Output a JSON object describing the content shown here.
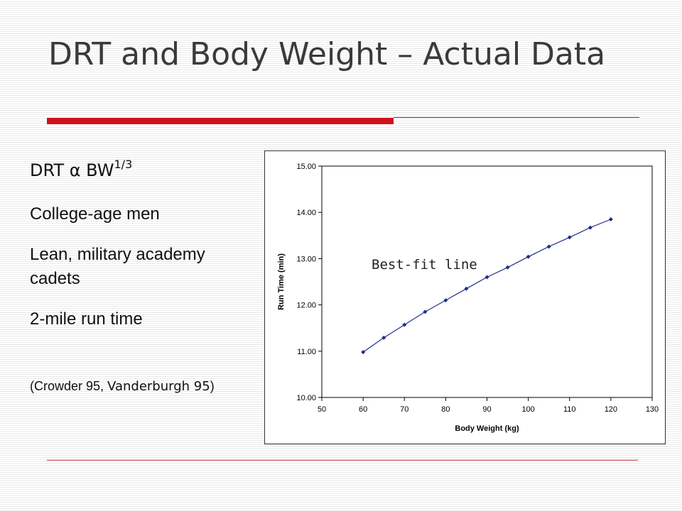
{
  "slide": {
    "title": "DRT and Body Weight – Actual Data",
    "bullets": {
      "formula_main": "DRT α BW",
      "formula_exp": "1/3",
      "college": "College-age men",
      "lean": "Lean, military academy cadets",
      "run": "2-mile run time",
      "cite_a": "(Crowder 95, ",
      "cite_b": "Vanderburgh 95",
      "cite_c": ")"
    }
  },
  "colors": {
    "accent": "#d0101f",
    "series": "#1f2f8a"
  },
  "chart_data": {
    "type": "line",
    "xlabel": "Body Weight (kg)",
    "ylabel": "Run Time (min)",
    "xlim": [
      50,
      130
    ],
    "ylim": [
      10.0,
      15.0
    ],
    "x_ticks": [
      "50",
      "60",
      "70",
      "80",
      "90",
      "100",
      "110",
      "120",
      "130"
    ],
    "y_ticks": [
      "10.00",
      "11.00",
      "12.00",
      "13.00",
      "14.00",
      "15.00"
    ],
    "annotation": "Best-fit line",
    "grid": false,
    "legend": "none",
    "series": [
      {
        "marker": "diamond",
        "x": [
          60,
          65,
          70,
          75,
          80,
          85,
          90,
          95,
          100,
          105,
          110,
          115,
          120
        ],
        "y": [
          10.98,
          11.29,
          11.57,
          11.85,
          12.1,
          12.35,
          12.6,
          12.81,
          13.04,
          13.26,
          13.46,
          13.67,
          13.85
        ]
      }
    ]
  }
}
